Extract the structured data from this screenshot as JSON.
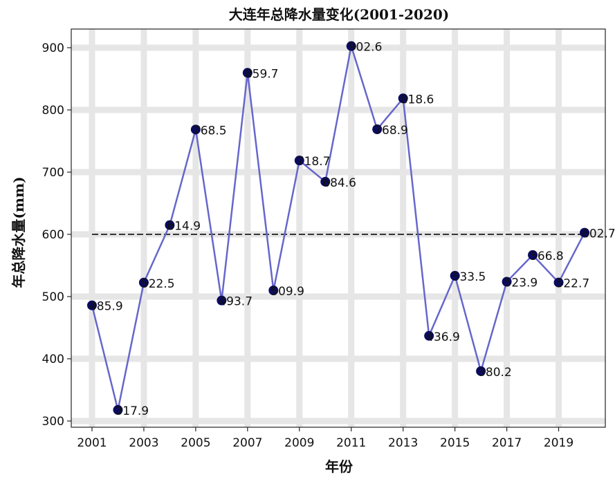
{
  "chart_data": {
    "type": "line",
    "title": "大连年总降水量变化(2001-2020)",
    "xlabel": "年份",
    "ylabel": "年总降水量(mm)",
    "x": [
      2001,
      2002,
      2003,
      2004,
      2005,
      2006,
      2007,
      2008,
      2009,
      2010,
      2011,
      2012,
      2013,
      2014,
      2015,
      2016,
      2017,
      2018,
      2019,
      2020
    ],
    "series": [
      {
        "values": [
          485.9,
          317.9,
          522.5,
          614.9,
          768.5,
          493.7,
          859.7,
          509.9,
          718.7,
          684.6,
          902.6,
          768.9,
          818.6,
          436.9,
          533.5,
          380.2,
          523.9,
          566.8,
          522.7,
          602.7
        ],
        "labels": [
          "485.9",
          "317.9",
          "522.5",
          "614.9",
          "768.5",
          "493.7",
          "859.7",
          "509.9",
          "718.7",
          "684.6",
          "902.6",
          "768.9",
          "818.6",
          "436.9",
          "533.5",
          "380.2",
          "523.9",
          "566.8",
          "522.7",
          "602.7"
        ],
        "color": "#6666cc",
        "marker_color": "#0b0b5e"
      }
    ],
    "reference_line": {
      "value": 600,
      "style": "dashed",
      "color": "#333333"
    },
    "xticks": [
      "2001",
      "2003",
      "2005",
      "2007",
      "2009",
      "2011",
      "2013",
      "2015",
      "2017",
      "2019"
    ],
    "yticks": [
      "300",
      "400",
      "500",
      "600",
      "700",
      "800",
      "900"
    ],
    "xlim": [
      2000.2,
      2020.8
    ],
    "ylim": [
      290,
      930
    ],
    "grid": true
  }
}
